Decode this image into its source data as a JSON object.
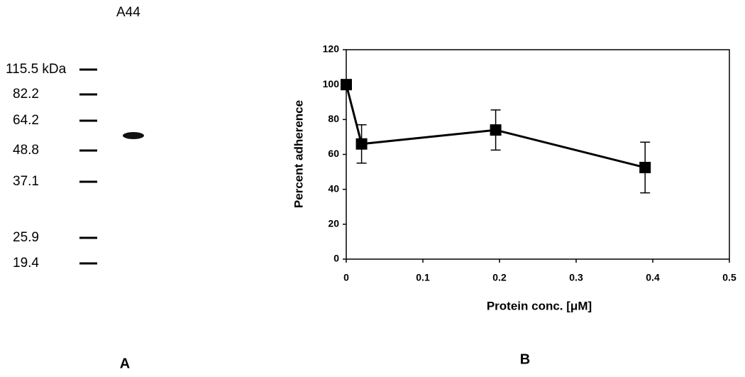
{
  "blot": {
    "lane_label": "A44",
    "markers": [
      "115.5 kDa",
      "82.2",
      "64.2",
      "48.8",
      "37.1",
      "25.9",
      "19.4"
    ],
    "panel_label": "A"
  },
  "chart_data": {
    "type": "line",
    "panel_label": "B",
    "x_label": "Protein conc. [μM]",
    "y_label": "Percent adherence",
    "x": [
      0,
      0.02,
      0.195,
      0.39
    ],
    "values": [
      100,
      66,
      74,
      52.5
    ],
    "errors": [
      null,
      11,
      11.5,
      14.5
    ],
    "color": "#000000",
    "xlim": [
      0,
      0.5
    ],
    "ylim": [
      0,
      120
    ],
    "xticks": [
      0,
      0.1,
      0.2,
      0.3,
      0.4,
      0.5
    ],
    "yticks": [
      0,
      20,
      40,
      60,
      80,
      100,
      120
    ]
  }
}
